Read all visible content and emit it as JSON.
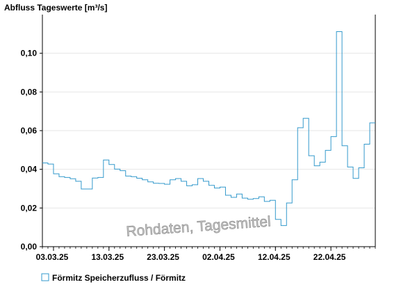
{
  "chart_data": {
    "type": "line",
    "step": true,
    "title": "Abfluss Tageswerte [m³/s]",
    "xlabel": "",
    "ylabel": "",
    "ylim": [
      0,
      0.12
    ],
    "y_ticks": [
      "0,00",
      "0,02",
      "0,04",
      "0,06",
      "0,08",
      "0,10"
    ],
    "y_tick_values": [
      0,
      0.02,
      0.04,
      0.06,
      0.08,
      0.1
    ],
    "x_tick_labels": [
      "03.03.25",
      "13.03.25",
      "23.03.25",
      "02.04.25",
      "12.04.25",
      "22.04.25"
    ],
    "x_start": "01.03.25",
    "grid": true,
    "legend_position": "bottom-left",
    "series": [
      {
        "name": "Förmitz Speicherzufluss / Förmitz",
        "color": "#3399cc",
        "values": [
          0.0433,
          0.0427,
          0.0377,
          0.0362,
          0.0358,
          0.0351,
          0.0338,
          0.0298,
          0.0298,
          0.0355,
          0.0358,
          0.0448,
          0.0425,
          0.0401,
          0.0393,
          0.0365,
          0.0362,
          0.0354,
          0.0346,
          0.0335,
          0.0328,
          0.0327,
          0.0323,
          0.0346,
          0.0352,
          0.0338,
          0.0315,
          0.032,
          0.0352,
          0.0338,
          0.0317,
          0.0303,
          0.0308,
          0.0266,
          0.0255,
          0.0272,
          0.0251,
          0.0245,
          0.0249,
          0.0258,
          0.0234,
          0.024,
          0.0141,
          0.0109,
          0.0226,
          0.0346,
          0.0615,
          0.0664,
          0.047,
          0.0418,
          0.0437,
          0.0498,
          0.0569,
          0.1112,
          0.0522,
          0.0412,
          0.0353,
          0.0408,
          0.053,
          0.064
        ]
      }
    ]
  },
  "watermark": "Rohdaten, Tagesmittel"
}
